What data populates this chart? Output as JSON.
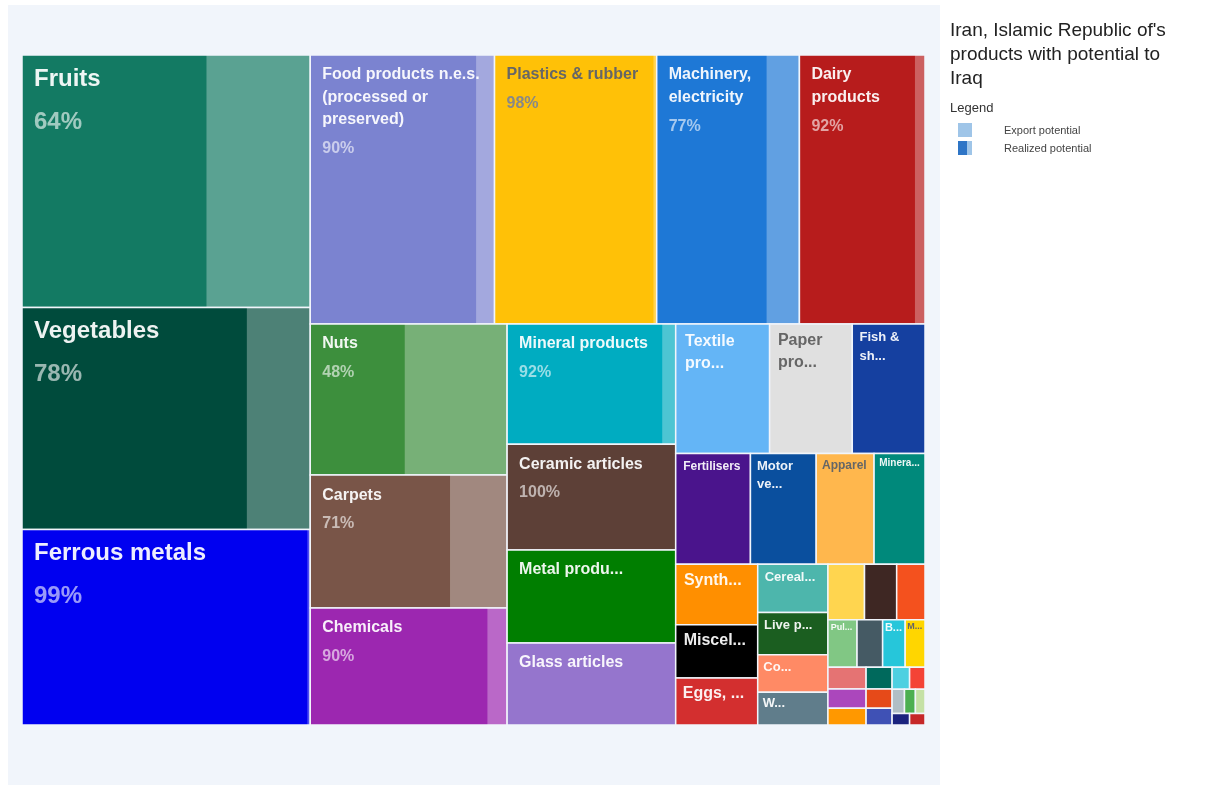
{
  "chart_data": {
    "type": "other",
    "title": "Iran, Islamic Republic of's products with potential to Iraq",
    "legend_title": "Legend",
    "categories": [
      "Fruits",
      "Vegetables",
      "Ferrous metals",
      "Food products n.e.s. (processed or preserved)",
      "Plastics & rubber",
      "Machinery, electricity",
      "Dairy products",
      "Nuts",
      "Carpets",
      "Chemicals",
      "Mineral products",
      "Ceramic articles",
      "Metal produ...",
      "Glass articles",
      "Textile pro...",
      "Paper pro...",
      "Fish & sh...",
      "Fertilisers",
      "Motor ve...",
      "Apparel",
      "Minera...",
      "Synth...",
      "Miscel...",
      "Eggs, ...",
      "Cereal...",
      "Live p...",
      "Co...",
      "W...",
      null,
      null,
      null,
      "Pul...",
      null,
      "B...",
      "M...",
      null,
      null,
      null,
      null,
      null,
      null,
      null,
      null,
      null,
      null,
      null,
      null,
      null
    ],
    "annotations": [
      "Export potential",
      "Realized potential"
    ],
    "values": [
      64,
      78,
      99,
      90,
      98,
      77,
      92,
      48,
      71,
      90,
      92,
      100,
      null,
      null,
      null,
      null,
      null,
      null,
      null,
      null,
      null,
      null,
      null,
      null,
      null,
      null,
      null,
      null,
      null,
      null,
      null,
      null,
      null,
      null,
      null,
      null,
      null,
      null,
      null,
      null,
      null,
      null,
      null,
      null,
      null,
      null,
      null,
      null
    ],
    "value_labels": [
      "64%",
      "78%",
      "99%",
      "90%",
      "98%",
      "77%",
      "92%",
      "48%",
      "71%",
      "90%",
      "92%",
      "100%",
      null,
      null,
      null,
      null,
      null,
      null,
      null,
      null,
      null,
      null,
      null,
      null,
      null,
      null,
      null,
      null,
      null,
      null,
      null,
      null,
      null,
      null,
      null,
      null,
      null,
      null,
      null,
      null,
      null,
      null,
      null,
      null,
      null,
      null,
      null,
      null
    ],
    "colors": [
      "#137a63",
      "#004b3c",
      "#0000f0",
      "#7b83d0",
      "#ffc107",
      "#1e78d6",
      "#b71c1c",
      "#3d8f3d",
      "#795548",
      "#9c27b0",
      "#00acc1",
      "#5d4037",
      "#007e00",
      "#9575cd",
      "#64b5f6",
      "#e0e0e0",
      "#1540a0",
      "#4a148c",
      "#0a4f9e",
      "#ffb74d",
      "#00897b",
      "#ff8f00",
      "#000000",
      "#d32f2f",
      "#4db6ac",
      "#1b5e20",
      "#ff8a65",
      "#607d8b",
      "#ffd54f",
      "#3e2723",
      "#f4511e",
      "#81c784",
      "#455a64",
      "#26c6da",
      "#ffd600",
      "#e57373",
      "#ab47bc",
      "#ff9800",
      "#00695c",
      "#e64a19",
      "#3f51b5",
      "#4dd0e1",
      "#f44336",
      "#b0bec5",
      "#4caf50",
      "#c5e1a5",
      "#1a237e",
      "#c62828"
    ]
  }
}
